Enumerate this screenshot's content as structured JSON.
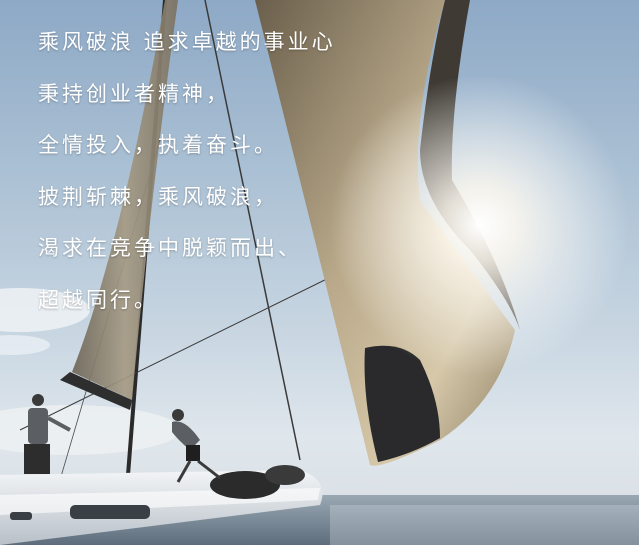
{
  "poem": {
    "lines": [
      "乘风破浪 追求卓越的事业心",
      "秉持创业者精神，",
      "全情投入，执着奋斗。",
      "披荆斩棘，乘风破浪，",
      "渴求在竞争中脱颖而出、",
      "超越同行。"
    ]
  },
  "colors": {
    "text": "#ffffff",
    "sky_top": "#8ea9c6",
    "sky_bottom": "#dfe6ec",
    "sea": "#6f8090",
    "sail": "#c9b89a",
    "hull": "#e9ecef"
  }
}
